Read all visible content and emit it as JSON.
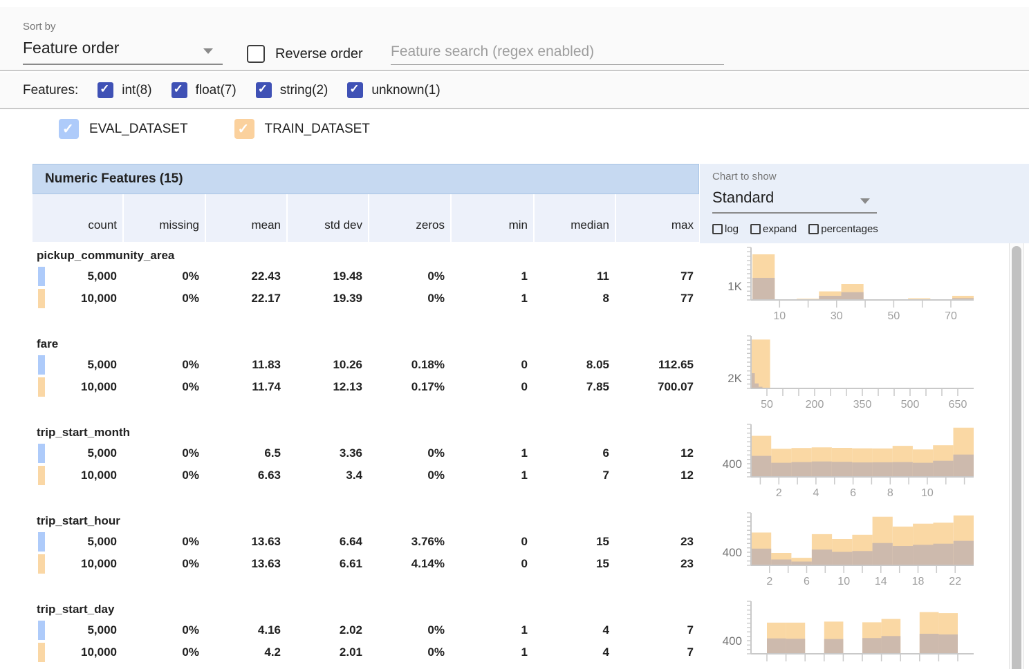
{
  "toolbar": {
    "sort_by_label": "Sort by",
    "sort_by_value": "Feature order",
    "reverse_order_label": "Reverse order",
    "search_placeholder": "Feature search (regex enabled)"
  },
  "features_bar": {
    "label": "Features:",
    "filters": [
      {
        "label": "int(8)",
        "checked": true
      },
      {
        "label": "float(7)",
        "checked": true
      },
      {
        "label": "string(2)",
        "checked": true
      },
      {
        "label": "unknown(1)",
        "checked": true
      }
    ]
  },
  "datasets": [
    {
      "name": "EVAL_DATASET",
      "color": "#aecbfa",
      "checked": true
    },
    {
      "name": "TRAIN_DATASET",
      "color": "#fbd19d",
      "checked": true
    }
  ],
  "chart_controls": {
    "label": "Chart to show",
    "selected": "Standard",
    "options": [
      {
        "label": "log",
        "checked": false
      },
      {
        "label": "expand",
        "checked": false
      },
      {
        "label": "percentages",
        "checked": false
      }
    ]
  },
  "table": {
    "title": "Numeric Features (15)",
    "columns": [
      "count",
      "missing",
      "mean",
      "std dev",
      "zeros",
      "min",
      "median",
      "max"
    ],
    "rows": [
      {
        "feature": "pickup_community_area",
        "eval": [
          "5,000",
          "0%",
          "22.43",
          "19.48",
          "0%",
          "1",
          "11",
          "77"
        ],
        "train": [
          "10,000",
          "0%",
          "22.17",
          "19.39",
          "0%",
          "1",
          "8",
          "77"
        ]
      },
      {
        "feature": "fare",
        "eval": [
          "5,000",
          "0%",
          "11.83",
          "10.26",
          "0.18%",
          "0",
          "8.05",
          "112.65"
        ],
        "train": [
          "10,000",
          "0%",
          "11.74",
          "12.13",
          "0.17%",
          "0",
          "7.85",
          "700.07"
        ]
      },
      {
        "feature": "trip_start_month",
        "eval": [
          "5,000",
          "0%",
          "6.5",
          "3.36",
          "0%",
          "1",
          "6",
          "12"
        ],
        "train": [
          "10,000",
          "0%",
          "6.63",
          "3.4",
          "0%",
          "1",
          "7",
          "12"
        ]
      },
      {
        "feature": "trip_start_hour",
        "eval": [
          "5,000",
          "0%",
          "13.63",
          "6.64",
          "3.76%",
          "0",
          "15",
          "23"
        ],
        "train": [
          "10,000",
          "0%",
          "13.63",
          "6.61",
          "4.14%",
          "0",
          "15",
          "23"
        ]
      },
      {
        "feature": "trip_start_day",
        "eval": [
          "5,000",
          "0%",
          "4.16",
          "2.02",
          "0%",
          "1",
          "4",
          "7"
        ],
        "train": [
          "10,000",
          "0%",
          "4.2",
          "2.01",
          "0%",
          "1",
          "4",
          "7"
        ]
      }
    ]
  },
  "colors": {
    "train_bar": "#fad8a4",
    "overlap_bar": "#cdbaad",
    "eval_swatch": "#aecbfa",
    "train_swatch": "#fad7a5",
    "accent_checkbox": "#3f51b5",
    "table_header_bg": "#c6d9f1",
    "panel_bg": "#e9eff9"
  },
  "chart_data": [
    {
      "type": "bar",
      "feature": "pickup_community_area",
      "x_min": 0,
      "x_max": 78,
      "ylim": 3800,
      "y_label": {
        "text": "1K",
        "value": 1000
      },
      "x_ticks": [
        10,
        20,
        30,
        40,
        50,
        60,
        70
      ],
      "x_tick_labels": [
        {
          "v": 10,
          "label": "10"
        },
        {
          "v": 30,
          "label": "30"
        },
        {
          "v": 50,
          "label": "50"
        },
        {
          "v": 70,
          "label": "70"
        }
      ],
      "train_bins": [
        {
          "x0": 0.5,
          "x1": 8.3,
          "v": 3300
        },
        {
          "x0": 8.3,
          "x1": 16,
          "v": 40
        },
        {
          "x0": 16,
          "x1": 23.8,
          "v": 90
        },
        {
          "x0": 23.8,
          "x1": 31.6,
          "v": 620
        },
        {
          "x0": 31.6,
          "x1": 39.4,
          "v": 1150
        },
        {
          "x0": 39.4,
          "x1": 47.2,
          "v": 25
        },
        {
          "x0": 47.2,
          "x1": 55,
          "v": 20
        },
        {
          "x0": 55,
          "x1": 62.8,
          "v": 120
        },
        {
          "x0": 62.8,
          "x1": 70.5,
          "v": 25
        },
        {
          "x0": 70.5,
          "x1": 78,
          "v": 300
        }
      ],
      "eval_bins": [
        {
          "x0": 0.5,
          "x1": 8.3,
          "v": 1600
        },
        {
          "x0": 8.3,
          "x1": 16,
          "v": 20
        },
        {
          "x0": 16,
          "x1": 23.8,
          "v": 40
        },
        {
          "x0": 23.8,
          "x1": 31.6,
          "v": 300
        },
        {
          "x0": 31.6,
          "x1": 39.4,
          "v": 560
        },
        {
          "x0": 39.4,
          "x1": 47.2,
          "v": 12
        },
        {
          "x0": 47.2,
          "x1": 55,
          "v": 8
        },
        {
          "x0": 55,
          "x1": 62.8,
          "v": 15
        },
        {
          "x0": 62.8,
          "x1": 70.5,
          "v": 10
        },
        {
          "x0": 70.5,
          "x1": 78,
          "v": 130
        }
      ]
    },
    {
      "type": "bar",
      "feature": "fare",
      "x_min": 0,
      "x_max": 700,
      "ylim": 10000,
      "y_label": {
        "text": "2K",
        "value": 2000
      },
      "x_ticks": [
        50,
        100,
        150,
        200,
        250,
        300,
        350,
        400,
        450,
        500,
        550,
        600,
        650
      ],
      "x_tick_labels": [
        {
          "v": 50,
          "label": "50"
        },
        {
          "v": 200,
          "label": "200"
        },
        {
          "v": 350,
          "label": "350"
        },
        {
          "v": 500,
          "label": "500"
        },
        {
          "v": 650,
          "label": "650"
        }
      ],
      "train_bins": [
        {
          "x0": 0,
          "x1": 60,
          "v": 9300
        }
      ],
      "eval_bins": [
        {
          "x0": 0,
          "x1": 12,
          "v": 2900
        },
        {
          "x0": 12,
          "x1": 24,
          "v": 950
        },
        {
          "x0": 24,
          "x1": 36,
          "v": 320
        }
      ]
    },
    {
      "type": "bar",
      "feature": "trip_start_month",
      "x_min": 0.5,
      "x_max": 12.5,
      "ylim": 1600,
      "y_label": {
        "text": "400",
        "value": 400
      },
      "x_ticks": [
        1,
        2,
        3,
        4,
        5,
        6,
        7,
        8,
        9,
        10,
        11,
        12
      ],
      "x_tick_labels": [
        {
          "v": 2,
          "label": "2"
        },
        {
          "v": 4,
          "label": "4"
        },
        {
          "v": 6,
          "label": "6"
        },
        {
          "v": 8,
          "label": "8"
        },
        {
          "v": 10,
          "label": "10"
        }
      ],
      "train_bins": [
        {
          "x0": 0.5,
          "x1": 1.59,
          "v": 1250
        },
        {
          "x0": 1.59,
          "x1": 2.68,
          "v": 855
        },
        {
          "x0": 2.68,
          "x1": 3.77,
          "v": 880
        },
        {
          "x0": 3.77,
          "x1": 4.86,
          "v": 900
        },
        {
          "x0": 4.86,
          "x1": 5.95,
          "v": 885
        },
        {
          "x0": 5.95,
          "x1": 7.04,
          "v": 870
        },
        {
          "x0": 7.04,
          "x1": 8.13,
          "v": 865
        },
        {
          "x0": 8.13,
          "x1": 9.22,
          "v": 945
        },
        {
          "x0": 9.22,
          "x1": 10.31,
          "v": 835
        },
        {
          "x0": 10.31,
          "x1": 11.4,
          "v": 965
        },
        {
          "x0": 11.4,
          "x1": 12.5,
          "v": 1500
        }
      ],
      "eval_bins": [
        {
          "x0": 0.5,
          "x1": 1.59,
          "v": 640
        },
        {
          "x0": 1.59,
          "x1": 2.68,
          "v": 430
        },
        {
          "x0": 2.68,
          "x1": 3.77,
          "v": 450
        },
        {
          "x0": 3.77,
          "x1": 4.86,
          "v": 470
        },
        {
          "x0": 4.86,
          "x1": 5.95,
          "v": 460
        },
        {
          "x0": 5.95,
          "x1": 7.04,
          "v": 440
        },
        {
          "x0": 7.04,
          "x1": 8.13,
          "v": 445
        },
        {
          "x0": 8.13,
          "x1": 9.22,
          "v": 450
        },
        {
          "x0": 9.22,
          "x1": 10.31,
          "v": 430
        },
        {
          "x0": 10.31,
          "x1": 11.4,
          "v": 490
        },
        {
          "x0": 11.4,
          "x1": 12.5,
          "v": 680
        }
      ]
    },
    {
      "type": "bar",
      "feature": "trip_start_hour",
      "x_min": 0,
      "x_max": 24,
      "ylim": 1600,
      "y_label": {
        "text": "400",
        "value": 400
      },
      "x_ticks": [
        2,
        4,
        6,
        8,
        10,
        12,
        14,
        16,
        18,
        20,
        22
      ],
      "x_tick_labels": [
        {
          "v": 2,
          "label": "2"
        },
        {
          "v": 6,
          "label": "6"
        },
        {
          "v": 10,
          "label": "10"
        },
        {
          "v": 14,
          "label": "14"
        },
        {
          "v": 18,
          "label": "18"
        },
        {
          "v": 22,
          "label": "22"
        }
      ],
      "train_bins": [
        {
          "x0": 0,
          "x1": 2.18,
          "v": 1000
        },
        {
          "x0": 2.18,
          "x1": 4.36,
          "v": 380
        },
        {
          "x0": 4.36,
          "x1": 6.55,
          "v": 230
        },
        {
          "x0": 6.55,
          "x1": 8.73,
          "v": 950
        },
        {
          "x0": 8.73,
          "x1": 10.91,
          "v": 800
        },
        {
          "x0": 10.91,
          "x1": 13.09,
          "v": 930
        },
        {
          "x0": 13.09,
          "x1": 15.27,
          "v": 1480
        },
        {
          "x0": 15.27,
          "x1": 17.45,
          "v": 1180
        },
        {
          "x0": 17.45,
          "x1": 19.64,
          "v": 1270
        },
        {
          "x0": 19.64,
          "x1": 21.82,
          "v": 1300
        },
        {
          "x0": 21.82,
          "x1": 24,
          "v": 1520
        }
      ],
      "eval_bins": [
        {
          "x0": 0,
          "x1": 2.18,
          "v": 510
        },
        {
          "x0": 2.18,
          "x1": 4.36,
          "v": 180
        },
        {
          "x0": 4.36,
          "x1": 6.55,
          "v": 115
        },
        {
          "x0": 6.55,
          "x1": 8.73,
          "v": 480
        },
        {
          "x0": 8.73,
          "x1": 10.91,
          "v": 410
        },
        {
          "x0": 10.91,
          "x1": 13.09,
          "v": 435
        },
        {
          "x0": 13.09,
          "x1": 15.27,
          "v": 680
        },
        {
          "x0": 15.27,
          "x1": 17.45,
          "v": 590
        },
        {
          "x0": 17.45,
          "x1": 19.64,
          "v": 625
        },
        {
          "x0": 19.64,
          "x1": 21.82,
          "v": 660
        },
        {
          "x0": 21.82,
          "x1": 24,
          "v": 745
        }
      ]
    },
    {
      "type": "bar",
      "feature": "trip_start_day",
      "x_min": 0.5,
      "x_max": 7.5,
      "ylim": 1600,
      "y_label": {
        "text": "400",
        "value": 400
      },
      "x_ticks": [
        1,
        1.6,
        2.2,
        2.8,
        3.4,
        4,
        4.6,
        5.2,
        5.8,
        6.4,
        7
      ],
      "x_tick_labels": [],
      "train_bins": [
        {
          "x0": 1,
          "x1": 1.6,
          "v": 950
        },
        {
          "x0": 1.6,
          "x1": 2.2,
          "v": 950
        },
        {
          "x0": 2.8,
          "x1": 3.4,
          "v": 980
        },
        {
          "x0": 4,
          "x1": 4.6,
          "v": 960
        },
        {
          "x0": 4.6,
          "x1": 5.2,
          "v": 1060
        },
        {
          "x0": 5.8,
          "x1": 6.4,
          "v": 1270
        },
        {
          "x0": 6.4,
          "x1": 7,
          "v": 1240
        }
      ],
      "eval_bins": [
        {
          "x0": 1,
          "x1": 1.6,
          "v": 470
        },
        {
          "x0": 1.6,
          "x1": 2.2,
          "v": 460
        },
        {
          "x0": 2.8,
          "x1": 3.4,
          "v": 450
        },
        {
          "x0": 4,
          "x1": 4.6,
          "v": 480
        },
        {
          "x0": 4.6,
          "x1": 5.2,
          "v": 540
        },
        {
          "x0": 5.8,
          "x1": 6.4,
          "v": 610
        },
        {
          "x0": 6.4,
          "x1": 7,
          "v": 590
        }
      ]
    }
  ]
}
